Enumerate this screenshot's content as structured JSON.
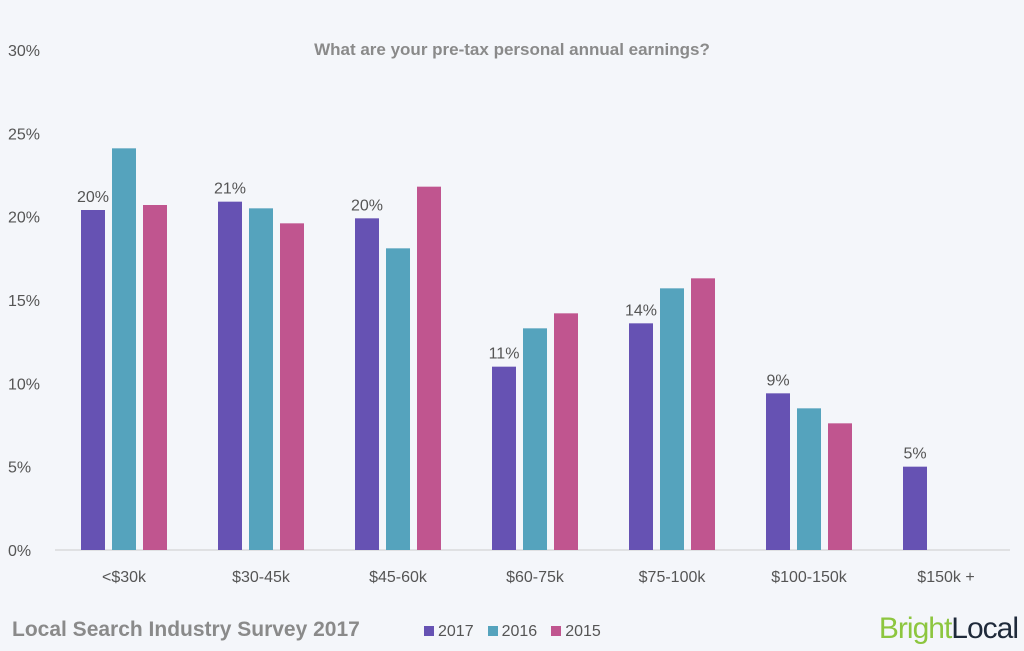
{
  "chart_data": {
    "type": "bar",
    "title": "What are your pre-tax personal annual earnings?",
    "categories": [
      "<$30k",
      "$30-45k",
      "$45-60k",
      "$60-75k",
      "$75-100k",
      "$100-150k",
      "$150k +"
    ],
    "series": [
      {
        "name": "2017",
        "color": "#6652b3",
        "values": [
          20.4,
          20.9,
          19.9,
          11.0,
          13.6,
          9.4,
          5.0
        ]
      },
      {
        "name": "2016",
        "color": "#55a3bd",
        "values": [
          24.1,
          20.5,
          18.1,
          13.3,
          15.7,
          8.5,
          null
        ]
      },
      {
        "name": "2015",
        "color": "#c0558f",
        "values": [
          20.7,
          19.6,
          21.8,
          14.2,
          16.3,
          7.6,
          null
        ]
      }
    ],
    "data_labels": [
      "20%",
      "21%",
      "20%",
      "11%",
      "14%",
      "9%",
      "5%"
    ],
    "yticks": [
      "0%",
      "5%",
      "10%",
      "15%",
      "20%",
      "25%",
      "30%"
    ],
    "ylim": [
      0,
      30
    ],
    "legend": "bottom"
  },
  "footer": {
    "title": "Local Search Industry Survey 2017",
    "logo_a": "Bright",
    "logo_b": "Local"
  }
}
